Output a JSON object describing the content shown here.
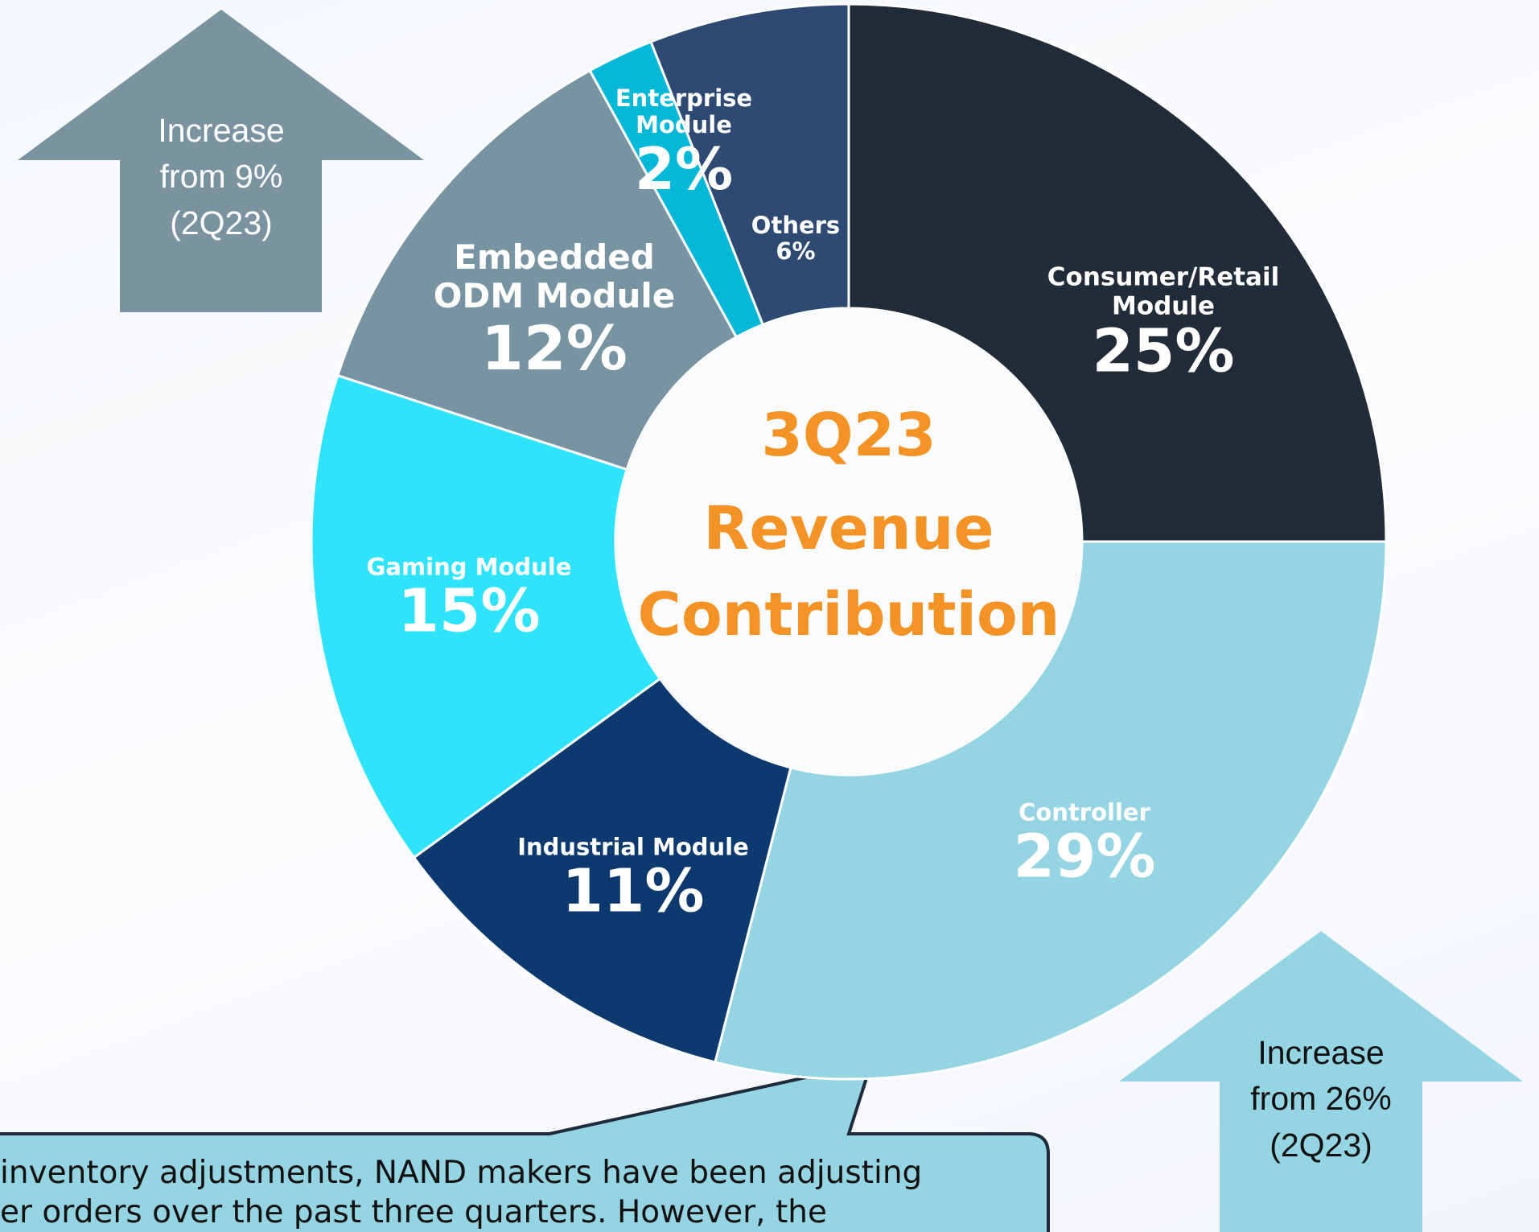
{
  "chart_data": {
    "type": "donut",
    "title": [
      "3Q23",
      "Revenue",
      "Contribution"
    ],
    "categories": [
      "Consumer/Retail Module",
      "Controller",
      "Industrial Module",
      "Gaming Module",
      "Embedded ODM Module",
      "Enterprise Module",
      "Others"
    ],
    "values": [
      25,
      29,
      11,
      15,
      12,
      2,
      6
    ],
    "value_labels": [
      "25%",
      "29%",
      "11%",
      "15%",
      "12%",
      "2%",
      "6%"
    ],
    "colors": [
      "#222b38",
      "#95d4e2",
      "#0d3a6e",
      "#2fe3fb",
      "#7894a3",
      "#06b8d8",
      "#2e4a72"
    ],
    "annotations": {
      "left_arrow": [
        "Increase",
        "from 9%",
        "(2Q23)"
      ],
      "right_arrow": [
        "Increase",
        "from 26%",
        "(2Q23)"
      ],
      "callout": [
        "inventory adjustments, NAND makers have been adjusting",
        "er orders over the past three quarters. However, the"
      ]
    }
  }
}
